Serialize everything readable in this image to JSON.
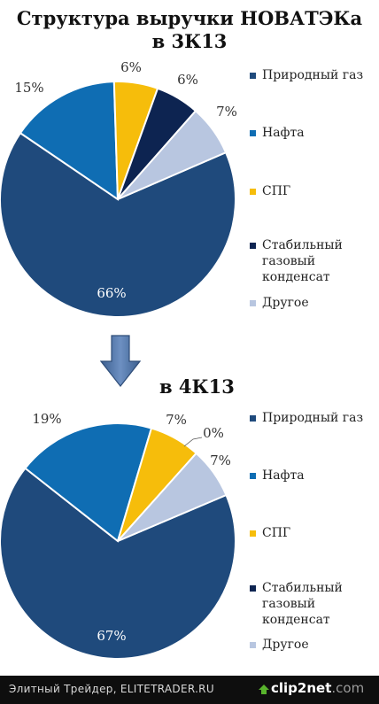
{
  "title_line1": "Структура  выручки  НОВАТЭКа",
  "title_line2": "в 3К13",
  "subtitle": "в 4К13",
  "footer": {
    "source_text": "Элитный Трейдер, ELITETRADER.RU",
    "logo_main": "clip2net",
    "logo_suffix": ".com",
    "logo_icon": "clip2net-logo-icon"
  },
  "arrow_icon": "down-arrow-icon",
  "chart_data": [
    {
      "type": "pie",
      "title": "Структура выручки НОВАТЭКа в 3К13",
      "categories": [
        "Природный газ",
        "Нафта",
        "СПГ",
        "Стабильный газовый конденсат",
        "Другое"
      ],
      "values": [
        66,
        15,
        6,
        6,
        7
      ],
      "labels": [
        "66%",
        "15%",
        "6%",
        "6%",
        "7%"
      ],
      "colors": [
        "#1f4a7c",
        "#0f6db3",
        "#f6bd0b",
        "#0d2451",
        "#b8c6e0"
      ],
      "legend_position": "right"
    },
    {
      "type": "pie",
      "title": "в 4К13",
      "categories": [
        "Природный газ",
        "Нафта",
        "СПГ",
        "Стабильный газовый конденсат",
        "Другое"
      ],
      "values": [
        67,
        19,
        7,
        0,
        7
      ],
      "labels": [
        "67%",
        "19%",
        "7%",
        "0%",
        "7%"
      ],
      "colors": [
        "#1f4a7c",
        "#0f6db3",
        "#f6bd0b",
        "#0d2451",
        "#b8c6e0"
      ],
      "legend_position": "right"
    }
  ],
  "legend": [
    {
      "label": "Природный газ",
      "color": "#1f4a7c"
    },
    {
      "label": "Нафта",
      "color": "#0f6db3"
    },
    {
      "label": "СПГ",
      "color": "#f6bd0b"
    },
    {
      "label": "Стабильный газовый конденсат",
      "color": "#0d2451"
    },
    {
      "label": "Другое",
      "color": "#b8c6e0"
    }
  ]
}
